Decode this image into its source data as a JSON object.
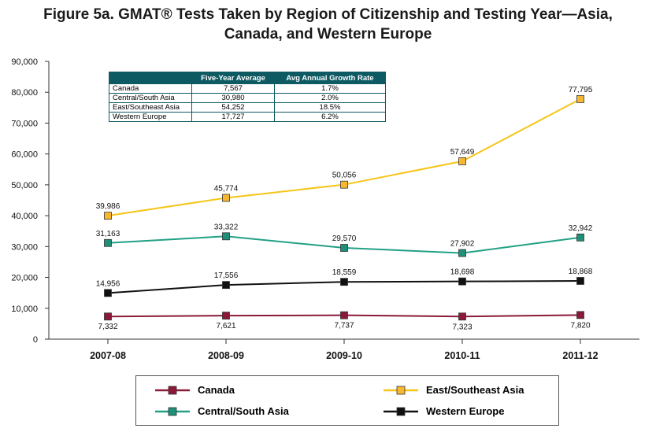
{
  "title_line1": "Figure 5a. GMAT® Tests Taken by Region of Citizenship and Testing Year—Asia,",
  "title_line2": "Canada, and Western Europe",
  "table": {
    "headers": [
      "",
      "Five-Year Average",
      "Avg Annual Growth Rate"
    ],
    "rows": [
      [
        "Canada",
        "7,567",
        "1.7%"
      ],
      [
        "Central/South Asia",
        "30,980",
        "2.0%"
      ],
      [
        "East/Southeast Asia",
        "54,252",
        "18.5%"
      ],
      [
        "Western Europe",
        "17,727",
        "6.2%"
      ]
    ]
  },
  "chart_data": {
    "type": "line",
    "categories": [
      "2007-08",
      "2008-09",
      "2009-10",
      "2010-11",
      "2011-12"
    ],
    "ylim": [
      0,
      90000
    ],
    "yticks": [
      "0",
      "10,000",
      "20,000",
      "30,000",
      "40,000",
      "50,000",
      "60,000",
      "70,000",
      "80,000",
      "90,000"
    ],
    "grid": false,
    "legend_position": "bottom",
    "series": [
      {
        "name": "East/Southeast Asia",
        "color": "#f5c518",
        "marker_fill": "#f7b731",
        "values": [
          39986,
          45774,
          50056,
          57649,
          77795
        ],
        "labels": [
          "39,986",
          "45,774",
          "50,056",
          "57,649",
          "77,795"
        ]
      },
      {
        "name": "Central/South Asia",
        "color": "#22a085",
        "marker_fill": "#1f8f78",
        "values": [
          31163,
          33322,
          29570,
          27902,
          32942
        ],
        "labels": [
          "31,163",
          "33,322",
          "29,570",
          "27,902",
          "32,942"
        ]
      },
      {
        "name": "Western Europe",
        "color": "#111111",
        "marker_fill": "#111111",
        "values": [
          14956,
          17556,
          18559,
          18698,
          18868
        ],
        "labels": [
          "14,956",
          "17,556",
          "18,559",
          "18,698",
          "18,868"
        ]
      },
      {
        "name": "Canada",
        "color": "#8b1a3a",
        "marker_fill": "#8b1a3a",
        "values": [
          7332,
          7621,
          7737,
          7323,
          7820
        ],
        "labels": [
          "7,332",
          "7,621",
          "7,737",
          "7,323",
          "7,820"
        ]
      }
    ]
  }
}
